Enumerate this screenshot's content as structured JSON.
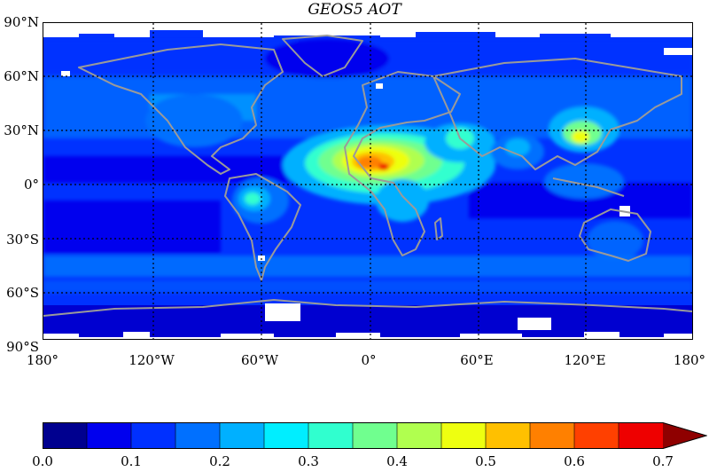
{
  "title": "GEOS5 AOT",
  "map": {
    "y_ticks": [
      "90°N",
      "60°N",
      "30°N",
      "0°",
      "30°S",
      "60°S",
      "90°S"
    ],
    "x_ticks": [
      "180°",
      "120°W",
      "60°W",
      "0°",
      "60°E",
      "120°E",
      "180°"
    ],
    "grid": "dotted",
    "coastline_color": "#9a9a9a"
  },
  "colorbar": {
    "ticks": [
      "0.0",
      "0.1",
      "0.2",
      "0.3",
      "0.4",
      "0.5",
      "0.6",
      "0.7"
    ],
    "levels": [
      0.0,
      0.05,
      0.1,
      0.15,
      0.2,
      0.25,
      0.3,
      0.35,
      0.4,
      0.45,
      0.5,
      0.55,
      0.6,
      0.65,
      0.7
    ],
    "colors": [
      "#00008f",
      "#0000ee",
      "#0030ff",
      "#0070ff",
      "#00b0ff",
      "#00eeff",
      "#30ffcf",
      "#70ff8f",
      "#b0ff4f",
      "#eeff10",
      "#ffc000",
      "#ff8000",
      "#ff4000",
      "#ee0000",
      "#8f0000"
    ],
    "extend": "max"
  }
}
